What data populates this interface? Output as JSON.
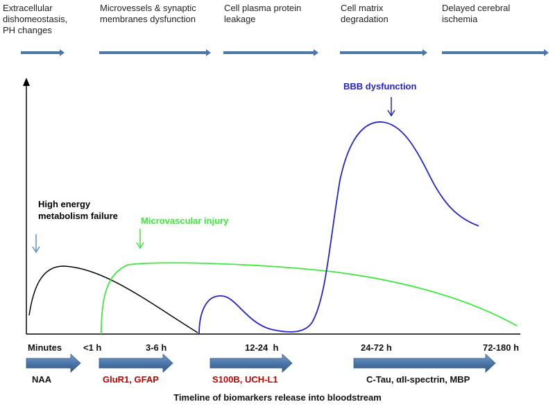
{
  "phases": [
    {
      "text": "Extracellular\ndishomeostasis,\nPH changes"
    },
    {
      "text": "Microvessels & synaptic\nmembranes dysfunction"
    },
    {
      "text": "Cell plasma protein\nleakage"
    },
    {
      "text": "Cell matrix\ndegradation"
    },
    {
      "text": "Delayed cerebral\nischemia"
    }
  ],
  "annotations": {
    "bbb": "BBB dysfunction",
    "energy": "High energy\nmetabolism failure",
    "micro": "Microvascular injury"
  },
  "ticks": [
    "Minutes",
    "<1 h",
    "3-6 h",
    "12-24  h",
    "24-72 h",
    "72-180 h"
  ],
  "biomarkers": [
    {
      "text": "NAA",
      "color": "#111111"
    },
    {
      "text": "GluR1, GFAP",
      "color": "#c00000"
    },
    {
      "text": "S100B, UCH-L1",
      "color": "#c00000"
    },
    {
      "text": "C-Tau, αII-spectrin, MBP",
      "color": "#111111"
    }
  ],
  "caption": "Timeline of biomarkers release into bloodstream",
  "colors": {
    "arrow": "#4a76a8",
    "energy_curve": "#000000",
    "micro_curve": "#3ee83e",
    "bbb_curve": "#2222cc",
    "energy_marker": "#5a8fd0"
  }
}
